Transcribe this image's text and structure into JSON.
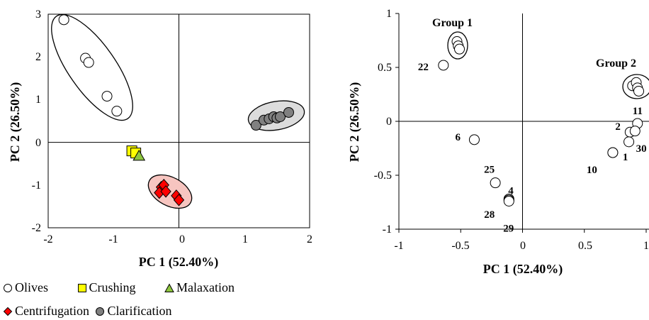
{
  "chart_data": [
    {
      "type": "scatter",
      "xlabel": "PC 1 (52.40%)",
      "ylabel": "PC 2 (26.50%)",
      "xlim": [
        -2,
        2
      ],
      "ylim": [
        -2,
        3
      ],
      "xticks": [
        "-2",
        "-1",
        "0",
        "1",
        "2"
      ],
      "yticks": [
        "-2",
        "-1",
        "0",
        "1",
        "2",
        "3"
      ],
      "series": [
        {
          "name": "Olives",
          "marker": "circle",
          "color": "#ffffff",
          "x": [
            -1.76,
            -1.43,
            -1.38,
            -1.1,
            -0.95
          ],
          "y": [
            2.87,
            1.97,
            1.87,
            1.08,
            0.73
          ]
        },
        {
          "name": "Crushing",
          "marker": "square",
          "color": "#ffff00",
          "x": [
            -0.72,
            -0.66
          ],
          "y": [
            -0.2,
            -0.25
          ]
        },
        {
          "name": "Malaxation",
          "marker": "triangle",
          "color": "#8ec63f",
          "x": [
            -0.61
          ],
          "y": [
            -0.32
          ]
        },
        {
          "name": "Centrifugation",
          "marker": "diamond",
          "color": "#ff0000",
          "x": [
            -0.27,
            -0.23,
            -0.3,
            -0.2,
            -0.04,
            0.0
          ],
          "y": [
            -1.05,
            -1.0,
            -1.18,
            -1.15,
            -1.25,
            -1.35
          ]
        },
        {
          "name": "Clarification",
          "marker": "circle",
          "color": "#808080",
          "x": [
            1.18,
            1.3,
            1.38,
            1.45,
            1.5,
            1.55,
            1.68
          ],
          "y": [
            0.4,
            0.52,
            0.55,
            0.6,
            0.57,
            0.6,
            0.7
          ]
        }
      ]
    },
    {
      "type": "scatter",
      "xlabel": "PC 1 (52.40%)",
      "ylabel": "PC 2 (26.50%)",
      "xlim": [
        -1,
        1
      ],
      "ylim": [
        -1,
        1
      ],
      "xticks": [
        "-1",
        "-0.5",
        "0",
        "0.5",
        "1"
      ],
      "yticks": [
        "-1",
        "-0.5",
        "0",
        "0.5",
        "1"
      ],
      "group_labels": [
        "Group 1",
        "Group 2"
      ],
      "points": [
        {
          "label": "22",
          "x": -0.64,
          "y": 0.52
        },
        {
          "label": "",
          "x": -0.53,
          "y": 0.74
        },
        {
          "label": "",
          "x": -0.52,
          "y": 0.7
        },
        {
          "label": "",
          "x": -0.51,
          "y": 0.67
        },
        {
          "label": "6",
          "x": -0.39,
          "y": -0.17
        },
        {
          "label": "25",
          "x": -0.22,
          "y": -0.57
        },
        {
          "label": "4",
          "x": -0.11,
          "y": -0.72
        },
        {
          "label": "28",
          "x": -0.11,
          "y": -0.73
        },
        {
          "label": "29",
          "x": -0.11,
          "y": -0.74
        },
        {
          "label": "1",
          "x": 0.73,
          "y": -0.29
        },
        {
          "label": "10",
          "x": 0.73,
          "y": -0.29
        },
        {
          "label": "2",
          "x": 0.87,
          "y": -0.1
        },
        {
          "label": "30",
          "x": 0.86,
          "y": -0.19
        },
        {
          "label": "11",
          "x": 0.93,
          "y": -0.02
        },
        {
          "label": "",
          "x": 0.91,
          "y": -0.09
        },
        {
          "label": "",
          "x": 0.89,
          "y": 0.33
        },
        {
          "label": "",
          "x": 0.92,
          "y": 0.36
        },
        {
          "label": "",
          "x": 0.93,
          "y": 0.31
        },
        {
          "label": "",
          "x": 0.94,
          "y": 0.28
        }
      ]
    }
  ],
  "legend": {
    "items": [
      {
        "label": "Olives",
        "marker": "circle",
        "color": "#ffffff"
      },
      {
        "label": "Crushing",
        "marker": "square",
        "color": "#ffff00"
      },
      {
        "label": "Malaxation",
        "marker": "triangle",
        "color": "#8ec63f"
      },
      {
        "label": "Centrifugation",
        "marker": "diamond",
        "color": "#ff0000"
      },
      {
        "label": "Clarification",
        "marker": "circle",
        "color": "#808080"
      }
    ]
  }
}
